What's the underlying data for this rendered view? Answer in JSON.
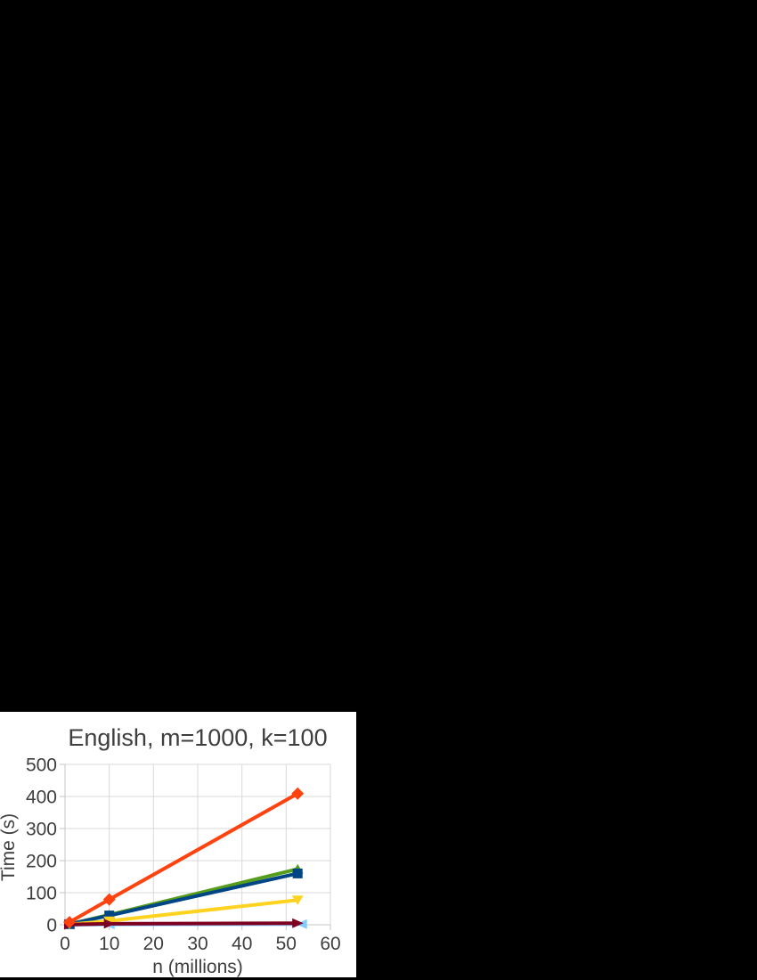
{
  "page": {
    "background": "#000000",
    "panel_background": "#FFFFFF"
  },
  "chart_data": {
    "type": "line",
    "title": "English, m=1000, k=100",
    "xlabel": "n (millions)",
    "ylabel": "Time (s)",
    "xlim": [
      0,
      60
    ],
    "ylim": [
      0,
      500
    ],
    "xticks": [
      0,
      10,
      20,
      30,
      40,
      50,
      60
    ],
    "yticks": [
      0,
      100,
      200,
      300,
      400,
      500
    ],
    "grid": true,
    "legend": "none",
    "x": [
      1,
      10,
      52.6
    ],
    "series": [
      {
        "id": "light-blue-arrow-left",
        "marker": "arrow-left",
        "color": "#83CAFF",
        "x": [
          1,
          10,
          53.5
        ],
        "values": [
          0,
          1,
          2
        ]
      },
      {
        "id": "green-arrow-up",
        "marker": "arrow-up",
        "color": "#579D1C",
        "values": [
          2,
          31,
          174
        ]
      },
      {
        "id": "blue-square",
        "marker": "square",
        "color": "#004586",
        "values": [
          2,
          29,
          160
        ]
      },
      {
        "id": "yellow-arrow-down",
        "marker": "arrow-down",
        "color": "#FFD320",
        "values": [
          1,
          12,
          77
        ]
      },
      {
        "id": "dark-red-arrow-right",
        "marker": "arrow-right",
        "color": "#7E0021",
        "values": [
          0.5,
          3,
          5
        ]
      },
      {
        "id": "orange-diamond",
        "marker": "diamond",
        "color": "#FF420E",
        "values": [
          8,
          79,
          409
        ]
      }
    ],
    "styles": {
      "grid_color": "#D9D9D9",
      "axis_color": "#C6C6C6",
      "text_color": "#3E3E3E",
      "line_width": 4
    }
  }
}
